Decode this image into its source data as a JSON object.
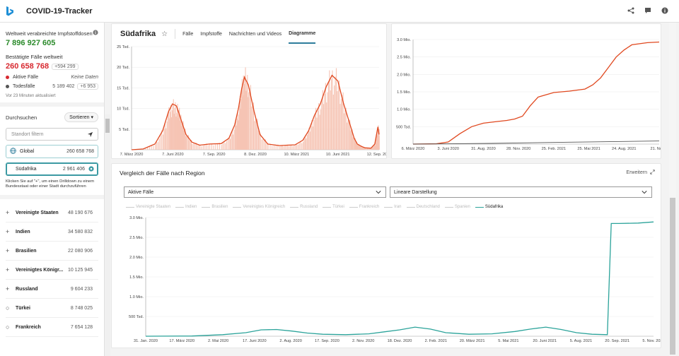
{
  "app": {
    "title": "COVID-19-Tracker"
  },
  "top_icons": [
    "share-icon",
    "feedback-icon",
    "info-icon"
  ],
  "sidebar": {
    "vaccine_label": "Weltweit verabreichte Impfstoffdosen",
    "vaccine_value": "7 896 927 605",
    "confirmed_label": "Bestätigte Fälle weltweit",
    "confirmed_value": "260 658 768",
    "confirmed_delta": "+594 299",
    "active_label": "Aktive Fälle",
    "active_value": "Keine Daten",
    "deaths_label": "Todesfälle",
    "deaths_value": "5 189 402",
    "deaths_delta": "+6 953",
    "updated": "Vor 23 Minuten aktualisiert",
    "browse_label": "Durchsuchen",
    "sort_label": "Sortieren",
    "filter_placeholder": "Standort filtern",
    "global_label": "Global",
    "global_value": "260 658 768",
    "selected_label": "Südafrika",
    "selected_value": "2 961 406",
    "hint": "Klicken Sie auf \"+\", um einen Drilldown zu einem Bundesstaat oder einer Stadt durchzuführen",
    "regions": [
      {
        "name": "Vereinigte Staaten",
        "value": "48 190 676",
        "expandable": true
      },
      {
        "name": "Indien",
        "value": "34 580 832",
        "expandable": true
      },
      {
        "name": "Brasilien",
        "value": "22 080 906",
        "expandable": true
      },
      {
        "name": "Vereinigtes Königr...",
        "value": "10 125 945",
        "expandable": true
      },
      {
        "name": "Russland",
        "value": "9 604 233",
        "expandable": true
      },
      {
        "name": "Türkei",
        "value": "8 748 025",
        "expandable": false
      },
      {
        "name": "Frankreich",
        "value": "7 654 128",
        "expandable": false
      }
    ]
  },
  "header": {
    "country": "Südafrika",
    "tabs": [
      "Fälle",
      "Impfstoffe",
      "Nachrichten und Videos",
      "Diagramme"
    ],
    "active_tab": "Diagramme"
  },
  "compare": {
    "title": "Vergleich der Fälle nach Region",
    "expand_label": "Erweitern",
    "metric_select": "Aktive Fälle",
    "scale_select": "Lineare Darstellung",
    "legend": [
      "Vereinigte Staaten",
      "Indien",
      "Brasilien",
      "Vereinigtes Königreich",
      "Russland",
      "Türkei",
      "Frankreich",
      "Iran",
      "Deutschland",
      "Spanien",
      "Südafrika"
    ],
    "legend_active": "Südafrika"
  },
  "colors": {
    "daily": "#e0481f",
    "daily_bars": "#f6c4b4",
    "cumulative": "#e0481f",
    "compare": "#2ba39a",
    "accent": "#2e7d9b"
  },
  "chart_data": [
    {
      "type": "line",
      "chart": "daily-new-cases",
      "y_ticks": [
        "5 Tsd.",
        "10 Tsd.",
        "15 Tsd.",
        "20 Tsd.",
        "25 Tsd."
      ],
      "ylim": [
        0,
        27000
      ],
      "x_ticks": [
        "7. März 2020",
        "7. Juni 2020",
        "7. Sep. 2020",
        "8. Dez. 2020",
        "10. März 2021",
        "10. Juni 2021",
        "12. Sep. 2021"
      ],
      "x": [
        0,
        30,
        60,
        80,
        95,
        105,
        115,
        122,
        130,
        140,
        155,
        175,
        200,
        230,
        250,
        265,
        275,
        283,
        290,
        300,
        315,
        330,
        350,
        380,
        400,
        420,
        440,
        455,
        470,
        485,
        500,
        515,
        530,
        545,
        560,
        572,
        580,
        590,
        600,
        615,
        625,
        633,
        636
      ],
      "values": [
        0,
        200,
        1500,
        5000,
        10000,
        12000,
        11500,
        9500,
        7000,
        4000,
        2000,
        1200,
        1500,
        1600,
        3000,
        6500,
        11000,
        16000,
        19000,
        17000,
        10000,
        4000,
        1500,
        1100,
        1200,
        1300,
        2500,
        5000,
        9000,
        12000,
        16500,
        19500,
        18000,
        12000,
        7000,
        3000,
        1500,
        900,
        500,
        400,
        1500,
        6000,
        4000
      ]
    },
    {
      "type": "line",
      "chart": "cumulative-cases",
      "y_ticks": [
        "500 Tsd.",
        "1.0 Mio.",
        "1.5 Mio.",
        "2.0 Mio.",
        "2.5 Mio.",
        "3.0 Mio."
      ],
      "ylim": [
        0,
        3000000
      ],
      "x_ticks": [
        "6. März 2020",
        "3. Juni 2020",
        "31. Aug. 2020",
        "28. Nov. 2020",
        "25. Feb. 2021",
        "25. Mai 2021",
        "24. Aug. 2021",
        "21. Nov. 2"
      ],
      "series": [
        {
          "name": "Bestätigte Fälle",
          "x": [
            0,
            60,
            90,
            120,
            150,
            180,
            210,
            240,
            260,
            280,
            290,
            300,
            320,
            360,
            400,
            440,
            460,
            480,
            500,
            520,
            540,
            560,
            600,
            630
          ],
          "values": [
            0,
            10000,
            60000,
            300000,
            500000,
            600000,
            640000,
            680000,
            720000,
            800000,
            950000,
            1100000,
            1350000,
            1480000,
            1520000,
            1580000,
            1700000,
            1900000,
            2200000,
            2500000,
            2700000,
            2850000,
            2910000,
            2930000
          ]
        },
        {
          "name": "Todesfälle",
          "x": [
            0,
            200,
            400,
            630
          ],
          "values": [
            0,
            20000,
            55000,
            90000
          ]
        }
      ]
    },
    {
      "type": "line",
      "chart": "compare-active-cases",
      "y_ticks": [
        "500 Tsd.",
        "1.0 Mio.",
        "1.5 Mio.",
        "2.0 Mio.",
        "2.5 Mio.",
        "3.0 Mio."
      ],
      "ylim": [
        0,
        3000000
      ],
      "x_ticks": [
        "31. Jan. 2020",
        "17. März 2020",
        "2. Mai 2020",
        "17. Juni 2020",
        "2. Aug. 2020",
        "17. Sep. 2020",
        "2. Nov. 2020",
        "18. Dez. 2020",
        "2. Feb. 2021",
        "20. März 2021",
        "5. Mai 2021",
        "20. Juni 2021",
        "5. Aug. 2021",
        "20. Sep. 2021",
        "5. Nov. 2021"
      ],
      "series": [
        {
          "name": "Südafrika",
          "x": [
            0,
            60,
            100,
            130,
            150,
            170,
            190,
            210,
            230,
            260,
            290,
            310,
            330,
            350,
            370,
            390,
            420,
            450,
            480,
            500,
            520,
            540,
            560,
            580,
            600,
            605,
            615,
            640,
            660
          ],
          "values": [
            0,
            5000,
            40000,
            90000,
            160000,
            170000,
            130000,
            80000,
            50000,
            40000,
            60000,
            110000,
            160000,
            230000,
            180000,
            90000,
            50000,
            60000,
            120000,
            180000,
            230000,
            170000,
            90000,
            50000,
            40000,
            2850000,
            2850000,
            2860000,
            2890000
          ]
        }
      ]
    }
  ]
}
